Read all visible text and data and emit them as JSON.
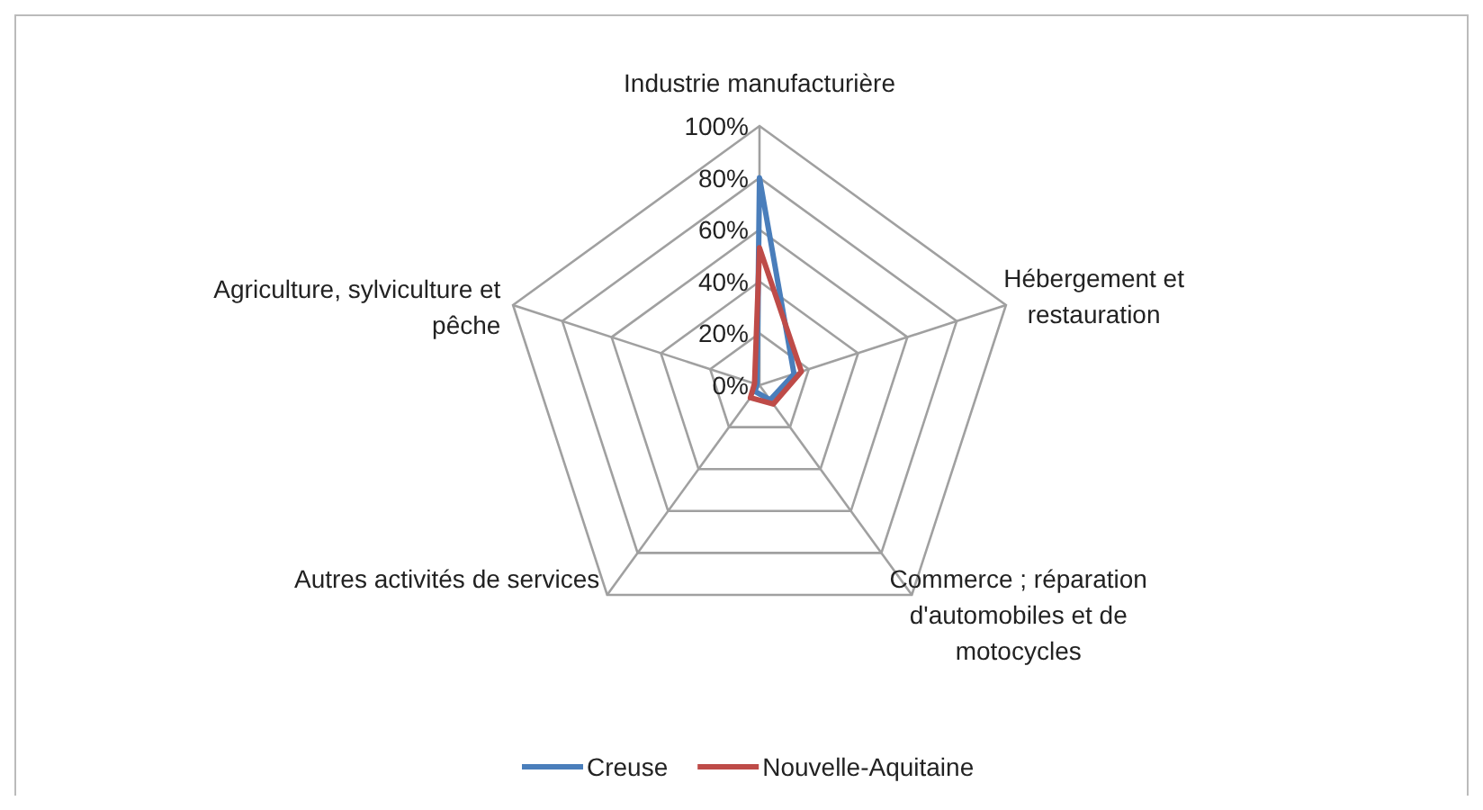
{
  "chart_data": {
    "type": "radar",
    "categories": [
      "Industrie manufacturière",
      "Hébergement et restauration",
      "Commerce ; réparation d'automobiles et de motocycles",
      "Autres activités de services",
      "Agriculture, sylviculture et pêche"
    ],
    "series": [
      {
        "name": "Creuse",
        "color": "#4a7ebb",
        "values": [
          80,
          14,
          7,
          3,
          1
        ]
      },
      {
        "name": "Nouvelle-Aquitaine",
        "color": "#be4b48",
        "values": [
          53,
          17,
          9,
          6,
          2
        ]
      }
    ],
    "ylim": [
      0,
      100
    ],
    "yticks": [
      {
        "value": 0,
        "label": "0%"
      },
      {
        "value": 20,
        "label": "20%"
      },
      {
        "value": 40,
        "label": "40%"
      },
      {
        "value": 60,
        "label": "60%"
      },
      {
        "value": 80,
        "label": "80%"
      },
      {
        "value": 100,
        "label": "100%"
      }
    ],
    "grid": true,
    "legend": "bottom"
  }
}
